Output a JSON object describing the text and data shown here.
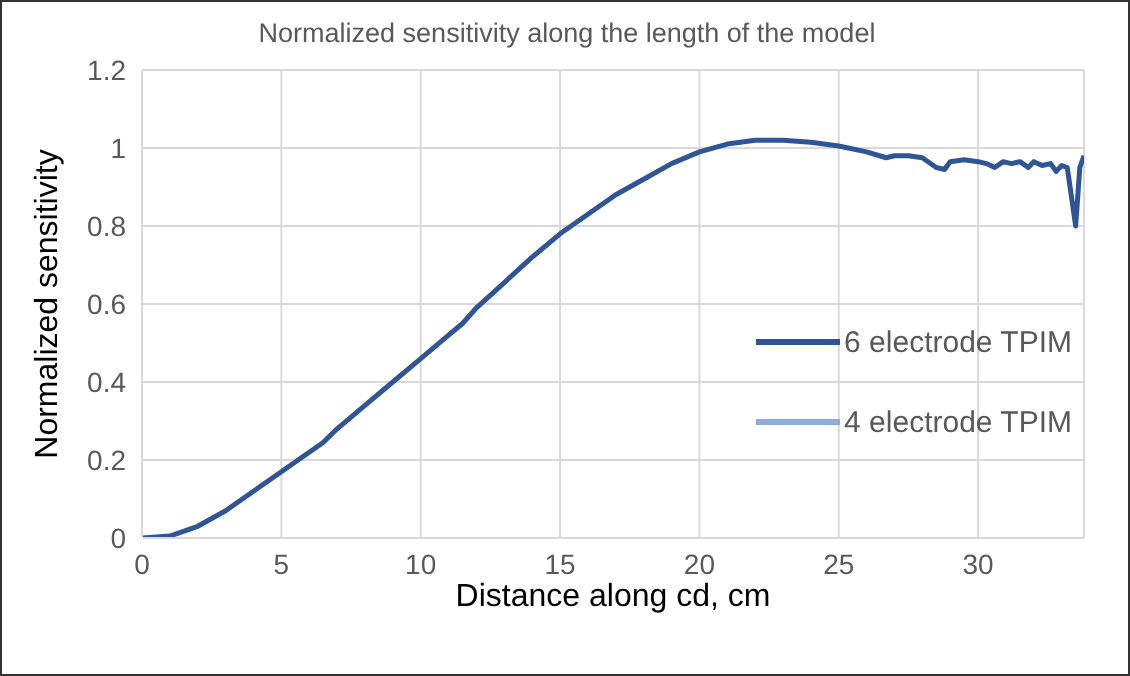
{
  "chart_data": {
    "type": "line",
    "title": "Normalized sensitivity along the length of the model",
    "xlabel": "Distance along cd, cm",
    "ylabel": "Normalized sensitivity",
    "x": [
      0,
      1,
      2,
      3,
      4,
      5,
      6,
      6.5,
      7,
      8,
      9,
      10,
      11,
      11.5,
      12,
      13,
      14,
      15,
      16,
      17,
      18,
      19,
      20,
      21,
      22,
      23,
      24,
      25,
      26,
      26.7,
      27,
      27.5,
      28,
      28.5,
      28.8,
      29,
      29.5,
      30,
      30.3,
      30.6,
      30.9,
      31.2,
      31.5,
      31.8,
      32,
      32.3,
      32.6,
      32.8,
      33.0,
      33.2,
      33.5,
      33.65,
      33.8
    ],
    "series": [
      {
        "name": "6 electrode TPIM",
        "color": "#2f5597",
        "values": [
          0,
          0.005,
          0.03,
          0.07,
          0.12,
          0.17,
          0.22,
          0.245,
          0.28,
          0.34,
          0.4,
          0.46,
          0.52,
          0.55,
          0.59,
          0.655,
          0.72,
          0.78,
          0.83,
          0.88,
          0.92,
          0.96,
          0.99,
          1.01,
          1.02,
          1.02,
          1.015,
          1.005,
          0.99,
          0.975,
          0.98,
          0.98,
          0.975,
          0.95,
          0.945,
          0.965,
          0.97,
          0.965,
          0.96,
          0.95,
          0.965,
          0.96,
          0.965,
          0.95,
          0.965,
          0.955,
          0.96,
          0.94,
          0.955,
          0.95,
          0.8,
          0.95,
          0.98
        ]
      },
      {
        "name": "4 electrode TPIM",
        "color": "#8faadc",
        "values": [
          null,
          null,
          null,
          null,
          null,
          null,
          null,
          null,
          null,
          null,
          null,
          null,
          null,
          null,
          null,
          null,
          null,
          null,
          null,
          null,
          null,
          null,
          null,
          null,
          null,
          null,
          null,
          null,
          null,
          null,
          null,
          null,
          null,
          null,
          null,
          null,
          null,
          null,
          null,
          null,
          null,
          null,
          null,
          null,
          null,
          null,
          null,
          null,
          null,
          null,
          null,
          null,
          null
        ]
      }
    ],
    "xlim": [
      0,
      33.8
    ],
    "xticks": [
      0,
      5,
      10,
      15,
      20,
      25,
      30
    ],
    "ylim": [
      0,
      1.2
    ],
    "yticks": [
      0,
      0.2,
      0.4,
      0.6,
      0.8,
      1,
      1.2
    ],
    "grid": true,
    "legend": "right",
    "marker": "none",
    "line_style": "solid"
  }
}
